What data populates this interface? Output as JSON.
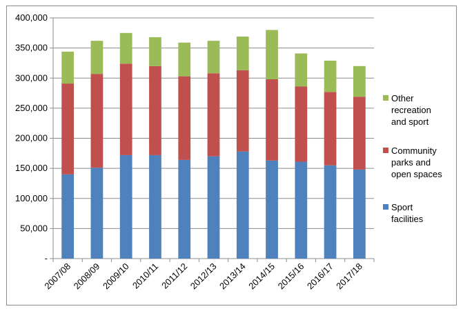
{
  "chart_data": {
    "type": "bar",
    "stacked": true,
    "categories": [
      "2007/08",
      "2008/09",
      "2009/10",
      "2010/11",
      "2011/12",
      "2012/13",
      "2013/14",
      "2014/15",
      "2015/16",
      "2016/17",
      "2017/18"
    ],
    "series": [
      {
        "name": "Sport facilities",
        "color": "#4f81bd",
        "values": [
          140000,
          151000,
          172000,
          172000,
          164000,
          170000,
          178000,
          163000,
          161000,
          155000,
          148000
        ]
      },
      {
        "name": "Community parks and open spaces",
        "color": "#c0504d",
        "values": [
          151000,
          156000,
          152000,
          148000,
          139000,
          138000,
          135000,
          135000,
          125000,
          122000,
          121000
        ]
      },
      {
        "name": "Other recreation and sport",
        "color": "#9bbb59",
        "values": [
          53000,
          55000,
          51000,
          48000,
          56000,
          54000,
          56000,
          82000,
          55000,
          52000,
          51000
        ]
      }
    ],
    "ylim": [
      0,
      400000
    ],
    "yticks": [
      0,
      50000,
      100000,
      150000,
      200000,
      250000,
      300000,
      350000,
      400000
    ],
    "ytick_labels": [
      "-",
      "50,000",
      "100,000",
      "150,000",
      "200,000",
      "250,000",
      "300,000",
      "350,000",
      "400,000"
    ],
    "legend_lines": [
      [
        "Other",
        "recreation",
        "and sport"
      ],
      [
        "Community",
        "parks and",
        "open spaces"
      ],
      [
        "Sport",
        "facilities"
      ]
    ],
    "grid": true,
    "legend_position": "right"
  }
}
